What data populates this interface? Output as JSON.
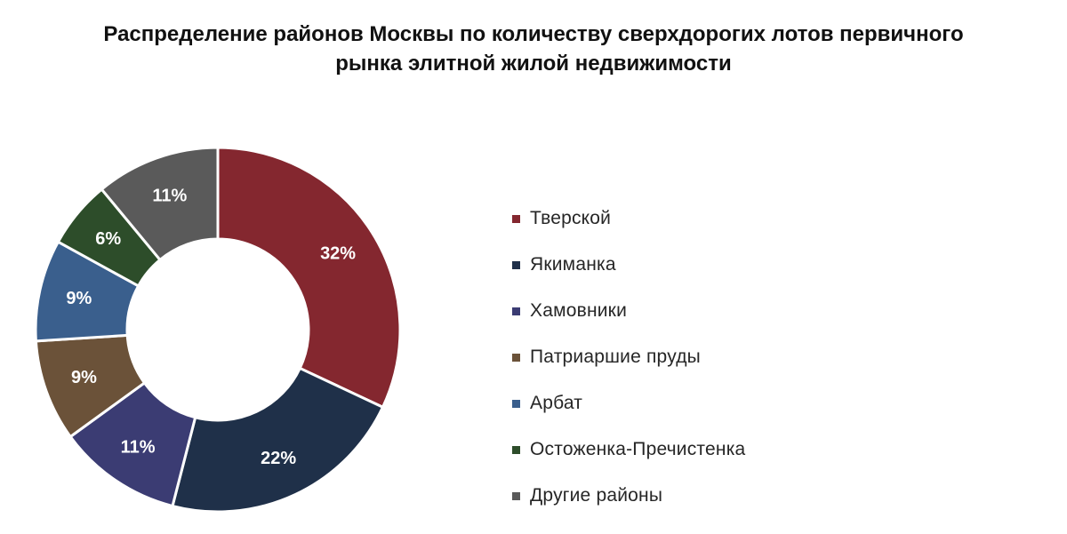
{
  "chart_data": {
    "type": "pie",
    "variant": "donut",
    "title": "Распределение районов Москвы по количеству сверхдорогих лотов первичного рынка элитной жилой недвижимости",
    "title_lines": [
      "Распределение районов Москвы по количеству сверхдорогих лотов первичного",
      "рынка элитной жилой недвижимости"
    ],
    "legend_position": "right",
    "unit": "%",
    "slices": [
      {
        "label": "Тверской",
        "value": 32,
        "value_label": "32%",
        "color": "#84272F"
      },
      {
        "label": "Якиманка",
        "value": 22,
        "value_label": "22%",
        "color": "#1F3049"
      },
      {
        "label": "Хамовники",
        "value": 11,
        "value_label": "11%",
        "color": "#3B3C73"
      },
      {
        "label": "Патриаршие пруды",
        "value": 9,
        "value_label": "9%",
        "color": "#6B5239"
      },
      {
        "label": "Арбат",
        "value": 9,
        "value_label": "9%",
        "color": "#3A5F8D"
      },
      {
        "label": "Остоженка-Пречистенка",
        "value": 6,
        "value_label": "6%",
        "color": "#2D4D2A"
      },
      {
        "label": "Другие районы",
        "value": 11,
        "value_label": "11%",
        "color": "#5A5A5A"
      }
    ]
  }
}
